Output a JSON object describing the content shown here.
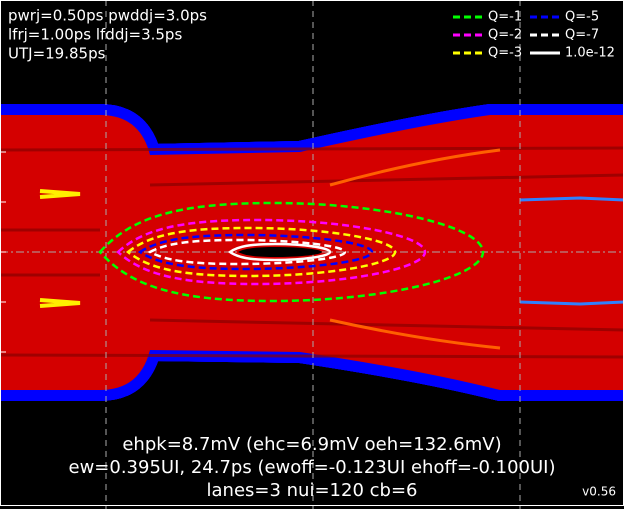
{
  "chart_data": {
    "type": "contour",
    "annotations": [
      "pwrj=0.50ps pwddj=3.0ps",
      "lfrj=1.00ps lfddj=3.5ps",
      "UTJ=19.85ps"
    ],
    "summary": [
      "ehpk=8.7mV (ehc=6.9mV oeh=132.6mV)",
      "ew=0.395UI, 24.7ps (ewoff=-0.123UI ehoff=-0.100UI)",
      "lanes=3 nui=120 cb=6"
    ],
    "version": "v0.56",
    "series": [
      {
        "name": "Q=-1",
        "color": "#00ff00",
        "dash": true
      },
      {
        "name": "Q=-2",
        "color": "#ff00ff",
        "dash": true
      },
      {
        "name": "Q=-3",
        "color": "#ffff00",
        "dash": true
      },
      {
        "name": "Q=-5",
        "color": "#0000ff",
        "dash": true
      },
      {
        "name": "Q=-7",
        "color": "#ffffff",
        "dash": true
      },
      {
        "name": "1.0e-12",
        "color": "#ffffff",
        "dash": false
      }
    ],
    "legend": "upper right",
    "grid": true
  }
}
